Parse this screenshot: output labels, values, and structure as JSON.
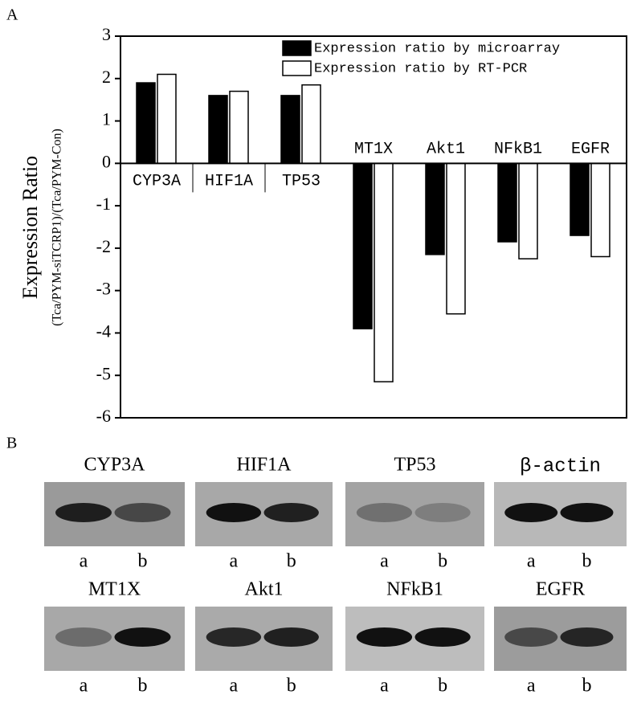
{
  "chart_data": {
    "type": "bar",
    "panel": "A",
    "ylabel": "Expression Ratio",
    "ylabel_sub": "(Tca/PYM-siTCRP1)/(Tca/PYM-Con)",
    "categories": [
      "CYP3A",
      "HIF1A",
      "TP53",
      "MT1X",
      "Akt1",
      "NFkB1",
      "EGFR"
    ],
    "series": [
      {
        "name": "Expression ratio by microarray",
        "color": "#000000",
        "values": [
          1.9,
          1.6,
          1.6,
          -3.9,
          -2.15,
          -1.85,
          -1.7
        ]
      },
      {
        "name": "Expression ratio by RT-PCR",
        "color": "#ffffff",
        "values": [
          2.1,
          1.7,
          1.85,
          -5.15,
          -3.55,
          -2.25,
          -2.2
        ]
      }
    ],
    "ylim": [
      -6,
      3
    ],
    "yticks": [
      -6,
      -5,
      -4,
      -3,
      -2,
      -1,
      0,
      1,
      2,
      3
    ],
    "legend": "upper right"
  },
  "blots": {
    "panel": "B",
    "lanes": [
      "a",
      "b"
    ],
    "rows": [
      [
        "CYP3A",
        "HIF1A",
        "TP53",
        "β-actin"
      ],
      [
        "MT1X",
        "Akt1",
        "NFkB1",
        "EGFR"
      ]
    ]
  }
}
